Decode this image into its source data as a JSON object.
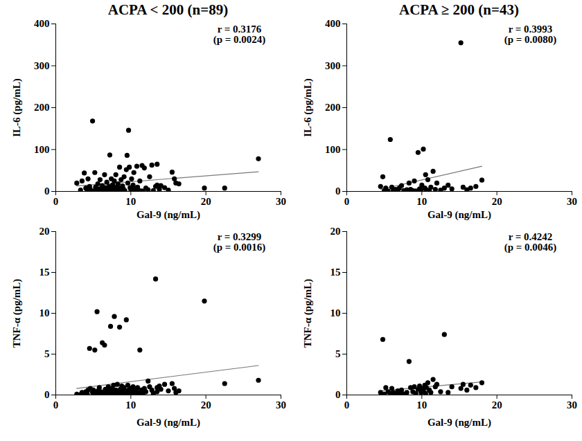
{
  "chart_data": [
    {
      "type": "scatter",
      "title": "ACPA < 200 (n=89)",
      "x_label": "Gal-9 (ng/mL)",
      "y_label": "IL-6 (pg/mL)",
      "color": "#000000",
      "x": [
        2.8,
        3.5,
        3.3,
        3.8,
        4.0,
        4.2,
        4.5,
        4.6,
        4.9,
        5.0,
        5.2,
        5.3,
        5.5,
        5.6,
        5.8,
        5.9,
        6.0,
        6.2,
        6.3,
        6.5,
        6.6,
        6.7,
        6.8,
        7.0,
        7.1,
        7.2,
        7.3,
        7.4,
        7.5,
        7.6,
        7.7,
        7.8,
        7.9,
        8.0,
        8.1,
        8.2,
        8.3,
        8.4,
        8.5,
        8.6,
        8.7,
        8.8,
        8.9,
        9.0,
        9.1,
        9.2,
        9.4,
        9.5,
        9.6,
        9.7,
        9.8,
        9.9,
        10.0,
        10.1,
        10.2,
        10.3,
        10.4,
        10.5,
        10.6,
        10.8,
        10.9,
        11.0,
        11.2,
        11.4,
        11.5,
        11.8,
        12.0,
        12.3,
        12.8,
        13.0,
        13.3,
        13.5,
        13.5,
        13.8,
        14.0,
        14.5,
        15.0,
        15.5,
        15.8,
        16.0,
        16.4,
        12.5,
        11.6,
        8.0,
        5.8,
        19.8,
        22.5,
        27.0,
        4.3
      ],
      "y": [
        20,
        25,
        3,
        44,
        8,
        2,
        12,
        5,
        168,
        1,
        45,
        10,
        3,
        18,
        6,
        28,
        2,
        14,
        4,
        40,
        9,
        1,
        22,
        5,
        12,
        87,
        2,
        30,
        7,
        16,
        3,
        25,
        0.5,
        40,
        10,
        4,
        18,
        1,
        58,
        8,
        28,
        3,
        13,
        6,
        35,
        2,
        52,
        86,
        20,
        146,
        58,
        9,
        4,
        30,
        1,
        15,
        45,
        6,
        2,
        60,
        10,
        3,
        25,
        1,
        62,
        56,
        8,
        4,
        63,
        2,
        12,
        65,
        15,
        5,
        14,
        9,
        3,
        46,
        30,
        20,
        18,
        35,
        0.5,
        0.5,
        0.5,
        8,
        8,
        78,
        30
      ],
      "trend_line": {
        "x": [
          2.8,
          27.0
        ],
        "y": [
          13,
          47
        ]
      },
      "xlim": [
        0,
        30
      ],
      "xticks": [
        0,
        10,
        20,
        30
      ],
      "ylim": [
        0,
        400
      ],
      "yticks": [
        0,
        100,
        200,
        300,
        400
      ],
      "annotations": [
        "r = 0.3176",
        "(p = 0.0024)"
      ]
    },
    {
      "type": "scatter",
      "title": "ACPA ≥ 200 (n=43)",
      "x_label": "Gal-9 (ng/mL)",
      "y_label": "IL-6 (pg/mL)",
      "color": "#000000",
      "x": [
        4.5,
        4.8,
        5.0,
        5.2,
        5.5,
        5.8,
        6.0,
        6.2,
        6.5,
        6.8,
        7.0,
        7.3,
        7.6,
        8.0,
        8.3,
        8.5,
        8.8,
        9.0,
        9.2,
        9.5,
        9.7,
        9.9,
        10.0,
        10.2,
        10.4,
        10.5,
        10.6,
        10.8,
        11.0,
        11.2,
        11.5,
        11.8,
        12.0,
        12.5,
        13.0,
        13.5,
        14.0,
        15.2,
        15.5,
        16.0,
        16.5,
        17.2,
        18.0
      ],
      "y": [
        12,
        35,
        2,
        8,
        1,
        124,
        10,
        3,
        5,
        1,
        8,
        14,
        2,
        4,
        20,
        5,
        2,
        25,
        1,
        93,
        6,
        3,
        15,
        101,
        8,
        40,
        4,
        28,
        2,
        10,
        48,
        5,
        20,
        3,
        8,
        15,
        6,
        355,
        10,
        4,
        8,
        12,
        27
      ],
      "trend_line": {
        "x": [
          4.5,
          18.0
        ],
        "y": [
          5,
          60
        ]
      },
      "xlim": [
        0,
        30
      ],
      "xticks": [
        0,
        10,
        20,
        30
      ],
      "ylim": [
        0,
        400
      ],
      "yticks": [
        0,
        100,
        200,
        300,
        400
      ],
      "annotations": [
        "r = 0.3993",
        "(p = 0.0080)"
      ]
    },
    {
      "type": "scatter",
      "x_label": "Gal-9 (ng/mL)",
      "y_label": "TNF-α (pg/mL)",
      "color": "#000000",
      "x": [
        2.8,
        3.5,
        3.3,
        3.8,
        4.0,
        4.2,
        4.5,
        4.6,
        4.9,
        5.0,
        5.2,
        5.3,
        5.5,
        5.6,
        5.8,
        5.9,
        6.0,
        6.2,
        6.3,
        6.5,
        6.6,
        6.7,
        6.8,
        7.0,
        7.1,
        7.2,
        7.3,
        7.4,
        7.5,
        7.6,
        7.7,
        7.8,
        7.9,
        8.0,
        8.1,
        8.2,
        8.3,
        8.4,
        8.5,
        8.6,
        8.7,
        8.8,
        8.9,
        9.0,
        9.1,
        9.2,
        9.4,
        9.5,
        9.6,
        9.7,
        9.8,
        9.9,
        10.0,
        10.1,
        10.2,
        10.3,
        10.4,
        10.5,
        10.6,
        10.8,
        10.9,
        11.0,
        11.2,
        11.4,
        11.5,
        11.8,
        12.0,
        12.3,
        12.8,
        13.0,
        13.3,
        13.5,
        13.5,
        13.8,
        14.0,
        14.5,
        15.0,
        15.5,
        15.8,
        16.0,
        16.4,
        12.5,
        11.6,
        8.0,
        5.8,
        19.8,
        22.5,
        27.0,
        4.3
      ],
      "y": [
        0.1,
        0.3,
        0.05,
        0.2,
        0.4,
        0.1,
        5.7,
        0.8,
        0.3,
        0.6,
        5.5,
        0.2,
        10.2,
        0.5,
        0.9,
        0.1,
        0.4,
        6.4,
        0.3,
        6.1,
        0.7,
        0.2,
        0.5,
        1.0,
        0.3,
        0.6,
        8.4,
        0.2,
        0.8,
        0.4,
        1.2,
        9.6,
        0.3,
        0.6,
        0.1,
        1.3,
        0.5,
        0.2,
        8.3,
        0.7,
        0.3,
        1.1,
        0.4,
        0.2,
        0.9,
        0.5,
        9.2,
        0.3,
        1.2,
        0.6,
        0.1,
        0.4,
        0.8,
        0.2,
        0.5,
        1.0,
        0.3,
        0.7,
        0.1,
        0.4,
        0.9,
        0.2,
        5.5,
        0.6,
        0.3,
        0.8,
        0.4,
        1.7,
        0.6,
        0.2,
        14.2,
        0.9,
        0.4,
        1.1,
        0.7,
        1.3,
        0.5,
        1.4,
        0.8,
        0.3,
        0.5,
        1.0,
        0.1,
        0.2,
        0.3,
        11.5,
        1.4,
        1.8,
        0.6
      ],
      "trend_line": {
        "x": [
          2.8,
          27.0
        ],
        "y": [
          0.8,
          3.6
        ]
      },
      "xlim": [
        0,
        30
      ],
      "xticks": [
        0,
        10,
        20,
        30
      ],
      "ylim": [
        0,
        20
      ],
      "yticks": [
        0,
        5,
        10,
        15,
        20
      ],
      "annotations": [
        "r = 0.3299",
        "(p = 0.0016)"
      ]
    },
    {
      "type": "scatter",
      "x_label": "Gal-9 (ng/mL)",
      "y_label": "TNF-α (pg/mL)",
      "color": "#000000",
      "x": [
        4.5,
        4.8,
        5.0,
        5.2,
        5.5,
        5.8,
        6.0,
        6.2,
        6.5,
        6.8,
        7.0,
        7.3,
        7.6,
        8.0,
        8.3,
        8.5,
        8.8,
        9.0,
        9.2,
        9.5,
        9.7,
        9.9,
        10.0,
        10.2,
        10.4,
        10.5,
        10.6,
        10.8,
        11.0,
        11.2,
        11.5,
        11.8,
        12.0,
        12.5,
        13.0,
        13.5,
        14.0,
        15.2,
        15.5,
        16.0,
        16.5,
        17.2,
        18.0
      ],
      "y": [
        0.3,
        6.8,
        0.1,
        0.9,
        0.4,
        0.2,
        0.8,
        0.3,
        0.1,
        0.5,
        0.2,
        0.6,
        0.1,
        0.3,
        4.1,
        0.9,
        0.4,
        1.0,
        0.2,
        0.7,
        1.1,
        0.3,
        0.8,
        0.5,
        1.2,
        0.2,
        0.9,
        1.5,
        0.6,
        0.3,
        1.9,
        1.0,
        1.3,
        0.4,
        7.4,
        0.3,
        1.0,
        0.8,
        1.3,
        0.6,
        1.2,
        0.9,
        1.5
      ],
      "trend_line": {
        "x": [
          4.5,
          18.0
        ],
        "y": [
          0.5,
          1.6
        ]
      },
      "xlim": [
        0,
        30
      ],
      "xticks": [
        0,
        10,
        20,
        30
      ],
      "ylim": [
        0,
        20
      ],
      "yticks": [
        0,
        5,
        10,
        15,
        20
      ],
      "annotations": [
        "r = 0.4242",
        "(p = 0.0046)"
      ]
    }
  ]
}
